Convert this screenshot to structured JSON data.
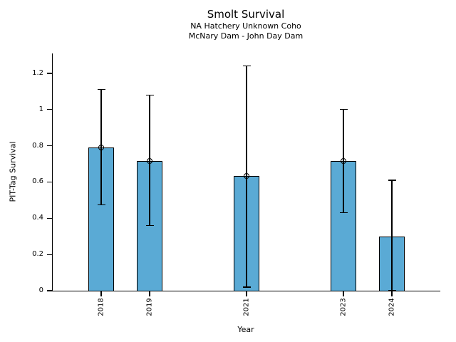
{
  "chart_data": {
    "type": "bar",
    "title": "Smolt Survival",
    "subtitle1": "NA Hatchery Unknown Coho",
    "subtitle2": "McNary Dam - John Day Dam",
    "xlabel": "Year",
    "ylabel": "PIT-Tag Survival",
    "x": [
      2018,
      2019,
      2021,
      2023,
      2024
    ],
    "xtick_labels": [
      "2018",
      "2019",
      "2021",
      "2023",
      "2024"
    ],
    "values": [
      0.79,
      0.715,
      0.635,
      0.715,
      0.3
    ],
    "error_low": [
      0.475,
      0.36,
      0.02,
      0.43,
      0.0
    ],
    "error_high": [
      1.11,
      1.08,
      1.24,
      1.0,
      0.61
    ],
    "marker": [
      true,
      true,
      true,
      true,
      false
    ],
    "xlim": [
      2017.0,
      2025.0
    ],
    "ylim": [
      0,
      1.31
    ],
    "yticks": [
      0,
      0.2,
      0.4,
      0.6,
      0.8,
      1.0,
      1.2
    ],
    "ytick_labels": [
      "0",
      "0.2",
      "0.4",
      "0.6",
      "0.8",
      "1",
      "1.2"
    ],
    "bar_width_years": 0.53,
    "bar_color": "#5AAAD5",
    "bar_edge_color": "#000000",
    "error_color": "#000000",
    "grid": false,
    "legend": null
  }
}
